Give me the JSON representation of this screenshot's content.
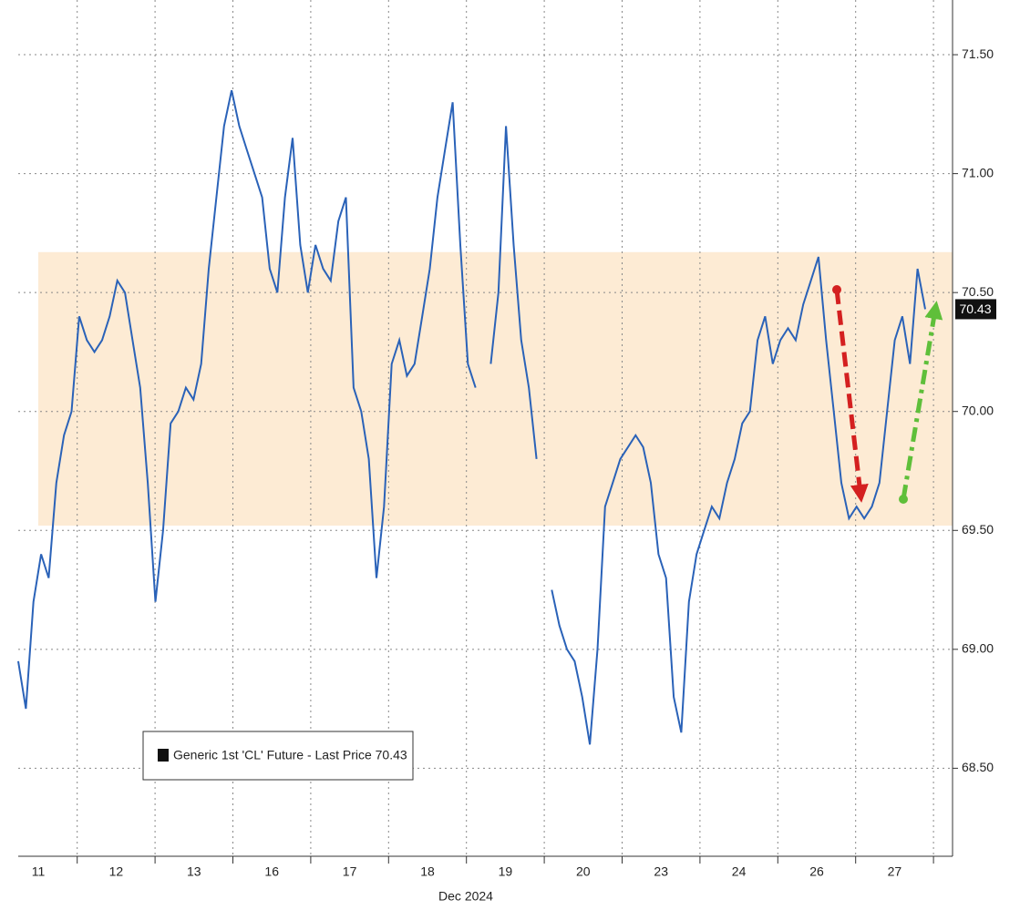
{
  "chart_data": {
    "type": "line",
    "xlabel": "Dec 2024",
    "xticks": [
      "11",
      "12",
      "13",
      "16",
      "17",
      "18",
      "19",
      "20",
      "23",
      "24",
      "26",
      "27"
    ],
    "series": [
      {
        "name": "Generic 1st 'CL' Future - Last Price 70.43",
        "color": "#2a62b8",
        "values": [
          68.95,
          68.75,
          69.2,
          69.4,
          69.3,
          69.7,
          69.9,
          70.0,
          70.4,
          70.3,
          70.25,
          70.3,
          70.4,
          70.55,
          70.5,
          70.3,
          70.1,
          69.7,
          69.2,
          69.5,
          69.95,
          70.0,
          70.1,
          70.05,
          70.2,
          70.6,
          70.9,
          71.2,
          71.35,
          71.2,
          71.1,
          71.0,
          70.9,
          70.6,
          70.5,
          70.9,
          71.15,
          70.7,
          70.5,
          70.7,
          70.6,
          70.55,
          70.8,
          70.9,
          70.1,
          70.0,
          69.8,
          69.3,
          69.6,
          70.2,
          70.3,
          70.15,
          70.2,
          70.4,
          70.6,
          70.9,
          71.1,
          71.3,
          70.7,
          70.2,
          70.1,
          null,
          70.2,
          70.5,
          71.2,
          70.7,
          70.3,
          70.1,
          69.8,
          null,
          69.25,
          69.1,
          69.0,
          68.95,
          68.8,
          68.6,
          69.0,
          69.6,
          69.7,
          69.8,
          69.85,
          69.9,
          69.85,
          69.7,
          69.4,
          69.3,
          68.8,
          68.65,
          69.2,
          69.4,
          69.5,
          69.6,
          69.55,
          69.7,
          69.8,
          69.95,
          70.0,
          70.3,
          70.4,
          70.2,
          70.3,
          70.35,
          70.3,
          70.45,
          70.55,
          70.65,
          70.3,
          70.0,
          69.7,
          69.55,
          69.6,
          69.55,
          69.6,
          69.7,
          70.0,
          70.3,
          70.4,
          70.2,
          70.6,
          70.43
        ]
      }
    ],
    "ylim": [
      68.13,
      71.73
    ],
    "yticks": [
      {
        "value": 68.5,
        "label": "68.50"
      },
      {
        "value": 69,
        "label": "69.00"
      },
      {
        "value": 69.5,
        "label": "69.50"
      },
      {
        "value": 70,
        "label": "70.00"
      },
      {
        "value": 70.5,
        "label": "70.50"
      },
      {
        "value": 71,
        "label": "71.00"
      },
      {
        "value": 71.5,
        "label": "71.50"
      }
    ],
    "band": [
      69.52,
      70.67
    ],
    "band_color": "#fdebd4",
    "grid": true
  }
}
